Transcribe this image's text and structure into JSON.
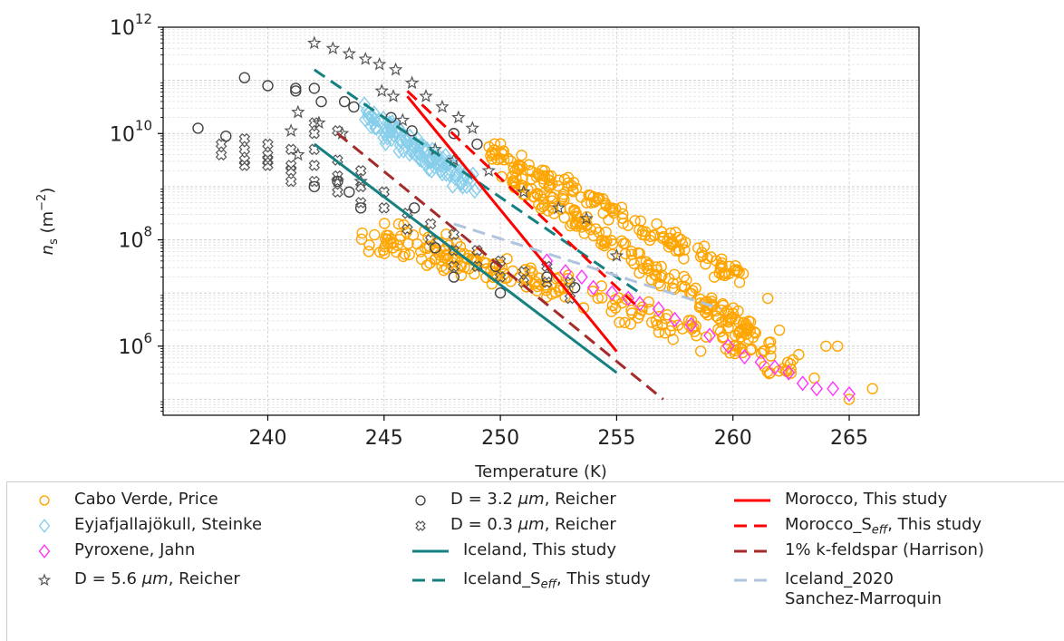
{
  "chart_data": {
    "type": "scatter",
    "xlabel": "Temperature (K)",
    "ylabel_main": "n",
    "ylabel_sub": "s",
    "ylabel_unit": " (m",
    "ylabel_exp": "−2",
    "ylabel_close": ")",
    "xlim": [
      235.5,
      268
    ],
    "ylim_log10": [
      4.7,
      12
    ],
    "yscale": "log",
    "grid": true,
    "x_ticks": [
      240,
      245,
      250,
      255,
      260,
      265
    ],
    "y_ticks": [
      {
        "base": "10",
        "exp": "6",
        "log": 6
      },
      {
        "base": "10",
        "exp": "8",
        "log": 8
      },
      {
        "base": "10",
        "exp": "10",
        "log": 10
      },
      {
        "base": "10",
        "exp": "12",
        "log": 12
      }
    ],
    "series": [
      {
        "name": "Cabo Verde, Price",
        "kind": "marker",
        "marker": "circle",
        "color": "#FFA500",
        "bands": [
          {
            "x0": 249.5,
            "x1": 260.5,
            "y0": 9.7,
            "y1": 7.3,
            "jitter": 0.25,
            "n": 150
          },
          {
            "x0": 250,
            "x1": 261,
            "y0": 9.3,
            "y1": 6.2,
            "jitter": 0.3,
            "n": 180
          },
          {
            "x0": 245,
            "x1": 263,
            "y0": 8.2,
            "y1": 5.6,
            "jitter": 0.35,
            "n": 160
          },
          {
            "x0": 244,
            "x1": 252,
            "y0": 8.0,
            "y1": 7.1,
            "jitter": 0.25,
            "n": 60
          }
        ],
        "points": [
          [
            266,
            5.2
          ],
          [
            264.5,
            6.0
          ],
          [
            264,
            6.0
          ],
          [
            262,
            6.3
          ],
          [
            261.5,
            6.9
          ],
          [
            259.2,
            7.3
          ],
          [
            265,
            5.0
          ],
          [
            263.5,
            5.4
          ]
        ]
      },
      {
        "name": "Eyjafjallajökull, Steinke",
        "kind": "marker",
        "marker": "diamond",
        "color": "#87CEEB",
        "bands": [
          {
            "x0": 244,
            "x1": 249,
            "y0": 10.4,
            "y1": 9.0,
            "jitter": 0.3,
            "n": 120
          }
        ]
      },
      {
        "name": "Pyroxene, Jahn",
        "kind": "marker",
        "marker": "diamond",
        "color": "#FF33FF",
        "points": [
          [
            252,
            7.6
          ],
          [
            252.8,
            7.4
          ],
          [
            253.5,
            7.3
          ],
          [
            254,
            7.1
          ],
          [
            254.8,
            7.0
          ],
          [
            255.5,
            6.9
          ],
          [
            256,
            6.8
          ],
          [
            256.8,
            6.7
          ],
          [
            257.5,
            6.5
          ],
          [
            258.2,
            6.4
          ],
          [
            259,
            6.2
          ],
          [
            259.8,
            6.0
          ],
          [
            260.5,
            5.8
          ],
          [
            261.2,
            5.7
          ],
          [
            261.8,
            5.6
          ],
          [
            262.4,
            5.5
          ],
          [
            263,
            5.3
          ],
          [
            263.6,
            5.2
          ],
          [
            264.3,
            5.2
          ],
          [
            265,
            5.1
          ]
        ]
      },
      {
        "name": "D = 5.6 μm, Reicher",
        "name_pre": "D = 5.6 ",
        "name_it": "μm",
        "name_post": ", Reicher",
        "kind": "marker",
        "marker": "star",
        "color": "#555555",
        "points": [
          [
            242,
            11.7
          ],
          [
            242.8,
            11.6
          ],
          [
            243.5,
            11.5
          ],
          [
            244.2,
            11.4
          ],
          [
            244.8,
            11.3
          ],
          [
            245.5,
            11.2
          ],
          [
            246.2,
            10.95
          ],
          [
            246.8,
            10.7
          ],
          [
            247.5,
            10.5
          ],
          [
            248.2,
            10.3
          ],
          [
            248.8,
            10.1
          ],
          [
            244.9,
            10.8
          ],
          [
            245.4,
            10.7
          ],
          [
            241.3,
            10.4
          ],
          [
            242.2,
            10.2
          ],
          [
            243.2,
            10.0
          ],
          [
            245.8,
            10.25
          ],
          [
            247.2,
            9.7
          ],
          [
            248,
            9.5
          ],
          [
            249.5,
            9.3
          ],
          [
            251,
            8.9
          ],
          [
            252.5,
            8.6
          ],
          [
            253.7,
            8.4
          ],
          [
            255,
            7.7
          ],
          [
            241,
            10.05
          ],
          [
            241.3,
            9.6
          ],
          [
            243,
            9.1
          ],
          [
            244,
            9.1
          ]
        ]
      },
      {
        "name": "D = 3.2 μm, Reicher",
        "name_pre": "D = 3.2 ",
        "name_it": "μm",
        "name_post": ", Reicher",
        "kind": "marker",
        "marker": "circle",
        "color": "#444444",
        "points": [
          [
            237,
            10.1
          ],
          [
            238.2,
            9.95
          ],
          [
            239,
            11.05
          ],
          [
            240,
            10.9
          ],
          [
            241.2,
            10.85
          ],
          [
            241.2,
            10.8
          ],
          [
            242,
            10.85
          ],
          [
            242.3,
            10.6
          ],
          [
            243.3,
            10.6
          ],
          [
            243.7,
            10.5
          ],
          [
            245.3,
            10.3
          ],
          [
            246.2,
            10.05
          ],
          [
            248,
            10.0
          ],
          [
            249,
            9.8
          ],
          [
            242,
            9.0
          ],
          [
            243,
            9.1
          ],
          [
            244,
            8.6
          ],
          [
            246.3,
            8.6
          ],
          [
            247.2,
            7.85
          ],
          [
            249.8,
            7.5
          ],
          [
            252,
            7.3
          ],
          [
            253.2,
            7.1
          ],
          [
            248,
            7.3
          ],
          [
            250,
            7.0
          ],
          [
            243.5,
            8.9
          ]
        ]
      },
      {
        "name": "D = 0.3 μm, Reicher",
        "name_pre": "D = 0.3 ",
        "name_it": "μm",
        "name_post": ", Reicher",
        "kind": "marker",
        "marker": "cross",
        "color": "#555555",
        "points": [
          [
            238,
            9.6
          ],
          [
            238,
            9.8
          ],
          [
            239,
            9.7
          ],
          [
            239,
            9.9
          ],
          [
            239,
            9.5
          ],
          [
            239,
            9.4
          ],
          [
            240,
            9.8
          ],
          [
            240,
            9.6
          ],
          [
            240,
            9.4
          ],
          [
            240,
            9.5
          ],
          [
            241,
            9.7
          ],
          [
            241,
            9.4
          ],
          [
            241,
            9.3
          ],
          [
            241,
            9.1
          ],
          [
            242,
            10.2
          ],
          [
            242,
            10.0
          ],
          [
            242,
            9.7
          ],
          [
            242,
            9.4
          ],
          [
            242,
            9.1
          ],
          [
            243,
            10.05
          ],
          [
            243,
            9.5
          ],
          [
            243,
            9.2
          ],
          [
            243,
            8.9
          ],
          [
            244,
            9.3
          ],
          [
            244,
            9.0
          ],
          [
            244,
            8.7
          ],
          [
            245,
            8.9
          ],
          [
            245,
            8.6
          ],
          [
            246,
            8.5
          ],
          [
            246,
            8.2
          ],
          [
            247,
            8.3
          ],
          [
            247,
            8.0
          ],
          [
            248,
            8.1
          ],
          [
            248,
            7.8
          ],
          [
            248,
            7.5
          ],
          [
            249,
            7.8
          ],
          [
            249,
            7.5
          ],
          [
            250,
            7.6
          ],
          [
            250,
            7.3
          ],
          [
            251,
            7.4
          ],
          [
            251,
            7.2
          ],
          [
            252,
            7.5
          ],
          [
            252,
            7.2
          ],
          [
            253,
            7.2
          ],
          [
            253,
            6.9
          ]
        ]
      },
      {
        "name": "Iceland, This study",
        "kind": "line",
        "dash": "",
        "color": "#158080",
        "x": [
          242,
          255
        ],
        "y_log": [
          9.8,
          5.5
        ]
      },
      {
        "name": "Iceland_Seff, This study",
        "name_pre": "Iceland_S",
        "name_sub": "eff",
        "name_post": ", This study",
        "kind": "line",
        "dash": "14,8",
        "color": "#158080",
        "x": [
          242,
          256
        ],
        "y_log": [
          11.2,
          7.0
        ]
      },
      {
        "name": "Morocco, This study",
        "kind": "line",
        "dash": "",
        "color": "#FF0000",
        "x": [
          246,
          255
        ],
        "y_log": [
          10.7,
          5.9
        ]
      },
      {
        "name": "Morocco_Seff, This study",
        "name_pre": "Morocco_S",
        "name_sub": "eff",
        "name_post": ", This study",
        "kind": "line",
        "dash": "14,8",
        "color": "#FF0000",
        "x": [
          246,
          256
        ],
        "y_log": [
          10.8,
          6.7
        ]
      },
      {
        "name": "1% k-feldspar (Harrison)",
        "kind": "line",
        "dash": "14,8",
        "color": "#A52A2A",
        "x": [
          243,
          257
        ],
        "y_log": [
          10.0,
          5.0
        ]
      },
      {
        "name": "Iceland_2020\nSanchez-Marroquin",
        "kind": "line",
        "dash": "14,8",
        "color": "#B0C4DE",
        "x": [
          248,
          259.5
        ],
        "y_log": [
          8.3,
          6.7
        ]
      }
    ]
  }
}
